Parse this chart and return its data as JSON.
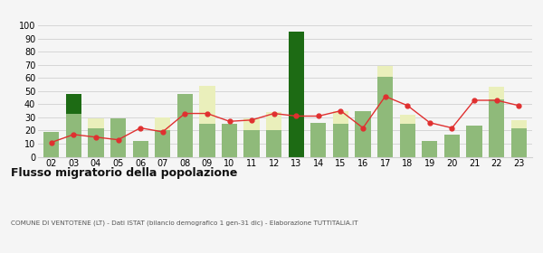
{
  "years": [
    "02",
    "03",
    "04",
    "05",
    "06",
    "07",
    "08",
    "09",
    "10",
    "11",
    "12",
    "13",
    "14",
    "15",
    "16",
    "17",
    "18",
    "19",
    "20",
    "21",
    "22",
    "23"
  ],
  "iscritti_comuni": [
    19,
    33,
    22,
    29,
    12,
    20,
    48,
    25,
    25,
    20,
    20,
    0,
    26,
    25,
    35,
    61,
    25,
    12,
    17,
    24,
    44,
    22
  ],
  "iscritti_estero": [
    0,
    0,
    7,
    0,
    0,
    10,
    0,
    29,
    0,
    9,
    14,
    0,
    0,
    10,
    0,
    8,
    7,
    0,
    0,
    0,
    9,
    6
  ],
  "iscritti_altri": [
    0,
    15,
    0,
    0,
    0,
    0,
    0,
    0,
    0,
    0,
    0,
    95,
    0,
    0,
    0,
    0,
    0,
    0,
    0,
    0,
    0,
    0
  ],
  "cancellati": [
    11,
    17,
    15,
    13,
    22,
    19,
    33,
    33,
    27,
    28,
    33,
    31,
    31,
    35,
    22,
    46,
    39,
    26,
    22,
    43,
    43,
    39
  ],
  "color_comuni": "#8fba7a",
  "color_estero": "#eaefbb",
  "color_altri": "#1d6b14",
  "color_cancellati": "#e03030",
  "ylim": [
    0,
    100
  ],
  "yticks": [
    0,
    10,
    20,
    30,
    40,
    50,
    60,
    70,
    80,
    90,
    100
  ],
  "title": "Flusso migratorio della popolazione",
  "subtitle": "COMUNE DI VENTOTENE (LT) - Dati ISTAT (bilancio demografico 1 gen-31 dic) - Elaborazione TUTTITALIA.IT",
  "bg_color": "#f5f5f5",
  "grid_color": "#d0d0d0"
}
